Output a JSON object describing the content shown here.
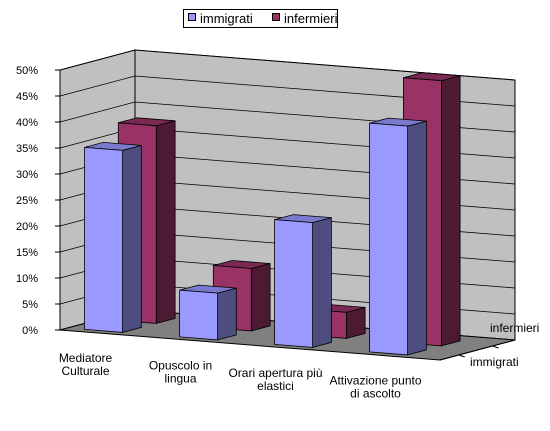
{
  "chart_data": {
    "type": "bar",
    "title": "",
    "xlabel": "",
    "ylabel": "",
    "categories": [
      "Mediatore Culturale",
      "Opuscolo in lingua",
      "Orari apertura più elastici",
      "Attivazione punto di ascolto"
    ],
    "category_lines": [
      [
        "Mediatore",
        "Culturale"
      ],
      [
        "Opuscolo in",
        "lingua"
      ],
      [
        "Orari apertura  più",
        "elastici"
      ],
      [
        "Attivazione punto",
        "di ascolto"
      ]
    ],
    "depth_labels": [
      "infermieri",
      "immigrati"
    ],
    "series": [
      {
        "name": "immigrati",
        "values": [
          0.35,
          0.09,
          0.24,
          0.44
        ],
        "color": "#9999ff"
      },
      {
        "name": "infermieri",
        "values": [
          0.38,
          0.12,
          0.05,
          0.51
        ],
        "color": "#993366"
      }
    ],
    "ylim": [
      0,
      0.5
    ],
    "yticks": [
      "0%",
      "5%",
      "10%",
      "15%",
      "20%",
      "25%",
      "30%",
      "35%",
      "40%",
      "45%",
      "50%"
    ],
    "grid": true,
    "legend_position": "top-center",
    "wall_color": "#c0c0c0",
    "floor_color": "#808080"
  }
}
